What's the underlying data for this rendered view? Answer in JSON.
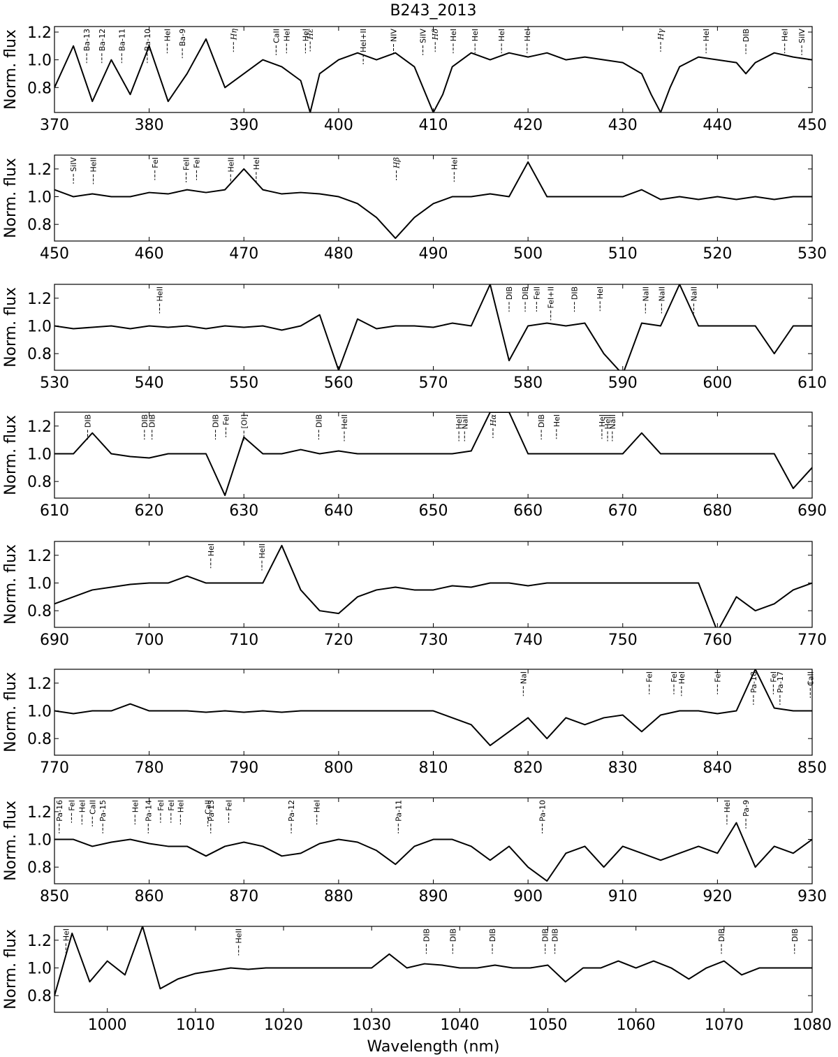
{
  "chart_data": [
    {
      "type": "line",
      "title": "B243_2013",
      "ylabel": "Norm. flux",
      "color": "#000000",
      "xlim": [
        370,
        450
      ],
      "xticks": [
        370,
        380,
        390,
        400,
        410,
        420,
        430,
        440,
        450
      ],
      "ylim": [
        0.62,
        1.24
      ],
      "yticks": [
        0.8,
        {
          "value": 1,
          "label": "1.0"
        },
        1.2
      ],
      "x": [
        370,
        372,
        374,
        376,
        378,
        380,
        382,
        384,
        386,
        388,
        390,
        392,
        394,
        396,
        397,
        398,
        400,
        402,
        404,
        406,
        408,
        410,
        411,
        412,
        414,
        416,
        418,
        420,
        422,
        424,
        426,
        428,
        430,
        432,
        433,
        434,
        435,
        436,
        438,
        440,
        442,
        443,
        444,
        446,
        448,
        450
      ],
      "values": [
        0.8,
        1.1,
        0.7,
        1.0,
        0.75,
        1.1,
        0.7,
        0.9,
        1.15,
        0.8,
        0.9,
        1.0,
        0.95,
        0.85,
        0.62,
        0.9,
        1.0,
        1.05,
        1.0,
        1.05,
        0.95,
        0.62,
        0.75,
        0.95,
        1.05,
        1.0,
        1.05,
        1.02,
        1.05,
        1.0,
        1.02,
        1.0,
        0.98,
        0.9,
        0.75,
        0.62,
        0.8,
        0.95,
        1.02,
        1.0,
        0.98,
        0.9,
        0.98,
        1.05,
        1.02,
        1.0
      ],
      "annotations": [
        {
          "x": 373.4,
          "text": "Ba-13"
        },
        {
          "x": 375.0,
          "text": "Ba-12"
        },
        {
          "x": 377.1,
          "text": "Ba-11"
        },
        {
          "x": 379.8,
          "text": "Ba-10"
        },
        {
          "x": 381.9,
          "text": "HeI"
        },
        {
          "x": 383.5,
          "text": "Ba-9"
        },
        {
          "x": 388.9,
          "text": "Hη"
        },
        {
          "x": 393.4,
          "text": "CaII"
        },
        {
          "x": 394.5,
          "text": "HeI"
        },
        {
          "x": 396.5,
          "text": "HeI"
        },
        {
          "x": 397.0,
          "text": "Hε"
        },
        {
          "x": 402.6,
          "text": "HeI+II"
        },
        {
          "x": 405.8,
          "text": "NIV"
        },
        {
          "x": 408.9,
          "text": "SiIV"
        },
        {
          "x": 410.2,
          "text": "Hδ"
        },
        {
          "x": 412.1,
          "text": "HeI"
        },
        {
          "x": 414.4,
          "text": "HeI"
        },
        {
          "x": 417.2,
          "text": "HeI"
        },
        {
          "x": 419.9,
          "text": "HeI"
        },
        {
          "x": 434.0,
          "text": "Hγ"
        },
        {
          "x": 438.8,
          "text": "HeI"
        },
        {
          "x": 443.0,
          "text": "DIB"
        },
        {
          "x": 447.1,
          "text": "HeI"
        },
        {
          "x": 448.9,
          "text": "SiIV"
        }
      ]
    },
    {
      "type": "line",
      "ylabel": "Norm. flux",
      "color": "#000000",
      "xlim": [
        450,
        530
      ],
      "xticks": [
        450,
        460,
        470,
        480,
        490,
        500,
        510,
        520,
        530
      ],
      "ylim": [
        0.68,
        1.3
      ],
      "yticks": [
        0.8,
        {
          "value": 1,
          "label": "1.0"
        },
        1.2
      ],
      "x": [
        450,
        452,
        454,
        456,
        458,
        460,
        462,
        464,
        466,
        468,
        470,
        472,
        474,
        476,
        478,
        480,
        482,
        484,
        486,
        488,
        490,
        492,
        494,
        496,
        498,
        500,
        502,
        504,
        506,
        508,
        510,
        512,
        514,
        516,
        518,
        520,
        522,
        524,
        526,
        528,
        530
      ],
      "values": [
        1.05,
        1.0,
        1.02,
        1.0,
        1.0,
        1.03,
        1.02,
        1.05,
        1.03,
        1.05,
        1.2,
        1.05,
        1.02,
        1.03,
        1.02,
        1.0,
        0.95,
        0.85,
        0.7,
        0.85,
        0.95,
        1.0,
        1.0,
        1.02,
        1.0,
        1.25,
        1.0,
        1.0,
        1.0,
        1.0,
        1.0,
        1.05,
        0.98,
        1.0,
        0.98,
        1.0,
        0.98,
        1.0,
        0.98,
        1.0,
        1.0
      ],
      "annotations": [
        {
          "x": 452.0,
          "text": "SiIV"
        },
        {
          "x": 454.1,
          "text": "HeII"
        },
        {
          "x": 460.6,
          "text": "FeI"
        },
        {
          "x": 463.9,
          "text": "FeII"
        },
        {
          "x": 465.0,
          "text": "FeI"
        },
        {
          "x": 468.6,
          "text": "HeII"
        },
        {
          "x": 471.3,
          "text": "HeI"
        },
        {
          "x": 486.1,
          "text": "Hβ"
        },
        {
          "x": 492.2,
          "text": "HeI"
        }
      ]
    },
    {
      "type": "line",
      "ylabel": "Norm. flux",
      "color": "#000000",
      "xlim": [
        530,
        610
      ],
      "xticks": [
        530,
        540,
        550,
        560,
        570,
        580,
        590,
        600,
        610
      ],
      "ylim": [
        0.68,
        1.3
      ],
      "yticks": [
        0.8,
        {
          "value": 1,
          "label": "1.0"
        },
        1.2
      ],
      "x": [
        530,
        532,
        534,
        536,
        538,
        540,
        542,
        544,
        546,
        548,
        550,
        552,
        554,
        556,
        558,
        560,
        562,
        564,
        566,
        568,
        570,
        572,
        574,
        576,
        578,
        580,
        582,
        584,
        586,
        588,
        590,
        592,
        594,
        596,
        598,
        600,
        602,
        604,
        606,
        608,
        610
      ],
      "values": [
        1.0,
        0.98,
        0.99,
        1.0,
        0.98,
        1.0,
        0.99,
        1.0,
        0.98,
        1.0,
        0.99,
        1.0,
        0.97,
        1.0,
        1.08,
        0.68,
        1.05,
        0.98,
        1.0,
        1.0,
        0.99,
        1.02,
        1.0,
        1.3,
        0.75,
        1.0,
        1.02,
        1.0,
        1.02,
        0.8,
        0.65,
        1.02,
        1.0,
        1.3,
        1.0,
        1.0,
        1.0,
        1.0,
        0.8,
        1.0,
        1.0
      ],
      "annotations": [
        {
          "x": 541.1,
          "text": "HeII"
        },
        {
          "x": 578.0,
          "text": "DIB"
        },
        {
          "x": 579.7,
          "text": "DIB"
        },
        {
          "x": 580.9,
          "text": "FeII"
        },
        {
          "x": 582.4,
          "text": "FeI+II"
        },
        {
          "x": 584.9,
          "text": "DIB"
        },
        {
          "x": 587.6,
          "text": "HeI"
        },
        {
          "x": 592.4,
          "text": "NaII"
        },
        {
          "x": 594.1,
          "text": "NaII"
        },
        {
          "x": 597.5,
          "text": "NaII"
        }
      ]
    },
    {
      "type": "line",
      "ylabel": "Norm. flux",
      "color": "#000000",
      "xlim": [
        610,
        690
      ],
      "xticks": [
        610,
        620,
        630,
        640,
        650,
        660,
        670,
        680,
        690
      ],
      "ylim": [
        0.68,
        1.3
      ],
      "yticks": [
        0.8,
        {
          "value": 1,
          "label": "1.0"
        },
        1.2
      ],
      "x": [
        610,
        612,
        614,
        616,
        618,
        620,
        622,
        624,
        626,
        628,
        630,
        632,
        634,
        636,
        638,
        640,
        642,
        644,
        646,
        648,
        650,
        652,
        654,
        656,
        658,
        660,
        662,
        664,
        666,
        668,
        670,
        672,
        674,
        676,
        678,
        680,
        682,
        684,
        686,
        688,
        690
      ],
      "values": [
        1.0,
        1.0,
        1.15,
        1.0,
        0.98,
        0.97,
        1.0,
        1.0,
        1.0,
        0.7,
        1.12,
        1.0,
        1.0,
        1.03,
        1.0,
        1.02,
        1.0,
        1.0,
        1.0,
        1.0,
        1.0,
        1.0,
        1.02,
        1.3,
        1.3,
        1.0,
        1.0,
        1.0,
        1.0,
        1.0,
        1.0,
        1.15,
        1.0,
        1.0,
        1.0,
        1.0,
        1.0,
        1.0,
        1.0,
        0.75,
        0.9
      ],
      "annotations": [
        {
          "x": 613.5,
          "text": "DIB"
        },
        {
          "x": 619.5,
          "text": "DIB"
        },
        {
          "x": 620.3,
          "text": "DIB"
        },
        {
          "x": 627.0,
          "text": "DIB"
        },
        {
          "x": 628.1,
          "text": "FeI"
        },
        {
          "x": 630.0,
          "text": "[OI]"
        },
        {
          "x": 637.9,
          "text": "DIB"
        },
        {
          "x": 640.6,
          "text": "HeII"
        },
        {
          "x": 652.7,
          "text": "HeII"
        },
        {
          "x": 653.3,
          "text": "NaII"
        },
        {
          "x": 656.3,
          "text": "Hα"
        },
        {
          "x": 661.4,
          "text": "DIB"
        },
        {
          "x": 663.0,
          "text": "HeI"
        },
        {
          "x": 667.8,
          "text": "HeI"
        },
        {
          "x": 668.4,
          "text": "HeII"
        },
        {
          "x": 668.9,
          "text": "NaII"
        }
      ]
    },
    {
      "type": "line",
      "ylabel": "Norm. flux",
      "color": "#000000",
      "xlim": [
        690,
        770
      ],
      "xticks": [
        690,
        700,
        710,
        720,
        730,
        740,
        750,
        760,
        770
      ],
      "ylim": [
        0.68,
        1.3
      ],
      "yticks": [
        0.8,
        {
          "value": 1,
          "label": "1.0"
        },
        1.2
      ],
      "x": [
        690,
        692,
        694,
        696,
        698,
        700,
        702,
        704,
        706,
        708,
        710,
        712,
        714,
        716,
        718,
        720,
        722,
        724,
        726,
        728,
        730,
        732,
        734,
        736,
        738,
        740,
        742,
        744,
        746,
        748,
        750,
        752,
        754,
        756,
        758,
        760,
        762,
        764,
        766,
        768,
        770
      ],
      "values": [
        0.85,
        0.9,
        0.95,
        0.97,
        0.99,
        1.0,
        1.0,
        1.05,
        1.0,
        1.0,
        1.0,
        1.0,
        1.27,
        0.95,
        0.8,
        0.78,
        0.9,
        0.95,
        0.97,
        0.95,
        0.95,
        0.98,
        0.97,
        1.0,
        1.0,
        0.98,
        1.0,
        1.0,
        1.0,
        1.0,
        1.0,
        1.0,
        1.0,
        1.0,
        1.0,
        0.65,
        0.9,
        0.8,
        0.85,
        0.95,
        1.0
      ],
      "annotations": [
        {
          "x": 706.5,
          "text": "HeI"
        },
        {
          "x": 711.9,
          "text": "HeII"
        }
      ]
    },
    {
      "type": "line",
      "ylabel": "Norm. flux",
      "color": "#000000",
      "xlim": [
        770,
        850
      ],
      "xticks": [
        770,
        780,
        790,
        800,
        810,
        820,
        830,
        840,
        850
      ],
      "ylim": [
        0.68,
        1.3
      ],
      "yticks": [
        0.8,
        {
          "value": 1,
          "label": "1.0"
        },
        1.2
      ],
      "x": [
        770,
        772,
        774,
        776,
        778,
        780,
        782,
        784,
        786,
        788,
        790,
        792,
        794,
        796,
        798,
        800,
        802,
        804,
        806,
        808,
        810,
        812,
        814,
        816,
        818,
        820,
        822,
        824,
        826,
        828,
        830,
        832,
        834,
        836,
        838,
        840,
        842,
        844,
        846,
        848,
        850
      ],
      "values": [
        1.0,
        0.98,
        1.0,
        1.0,
        1.05,
        1.0,
        1.0,
        1.0,
        0.99,
        1.0,
        0.99,
        1.0,
        0.99,
        1.0,
        1.0,
        1.0,
        1.0,
        1.0,
        1.0,
        1.0,
        1.0,
        0.95,
        0.9,
        0.75,
        0.85,
        0.95,
        0.8,
        0.95,
        0.9,
        0.95,
        0.97,
        0.85,
        0.97,
        1.0,
        1.0,
        0.98,
        1.0,
        1.3,
        1.02,
        1.0,
        1.0
      ],
      "annotations": [
        {
          "x": 819.5,
          "text": "NaI"
        },
        {
          "x": 832.8,
          "text": "FeI"
        },
        {
          "x": 835.4,
          "text": "FeI"
        },
        {
          "x": 836.2,
          "text": "HeI"
        },
        {
          "x": 840.0,
          "text": "FeI"
        },
        {
          "x": 843.8,
          "text": "Pa-18"
        },
        {
          "x": 845.9,
          "text": "FeI"
        },
        {
          "x": 846.6,
          "text": "Pa-17"
        },
        {
          "x": 849.8,
          "text": "CaII"
        }
      ]
    },
    {
      "type": "line",
      "ylabel": "Norm. flux",
      "color": "#000000",
      "xlim": [
        850,
        930
      ],
      "xticks": [
        850,
        860,
        870,
        880,
        890,
        900,
        910,
        920,
        930
      ],
      "ylim": [
        0.68,
        1.3
      ],
      "yticks": [
        0.8,
        {
          "value": 1,
          "label": "1.0"
        },
        1.2
      ],
      "x": [
        850,
        852,
        854,
        856,
        858,
        860,
        862,
        864,
        866,
        868,
        870,
        872,
        874,
        876,
        878,
        880,
        882,
        884,
        886,
        888,
        890,
        892,
        894,
        896,
        898,
        900,
        902,
        904,
        906,
        908,
        910,
        912,
        914,
        916,
        918,
        920,
        922,
        924,
        926,
        928,
        930
      ],
      "values": [
        1.0,
        1.0,
        0.95,
        0.98,
        1.0,
        0.97,
        0.95,
        0.95,
        0.88,
        0.95,
        0.98,
        0.95,
        0.88,
        0.9,
        0.97,
        1.0,
        0.98,
        0.92,
        0.82,
        0.95,
        1.0,
        1.0,
        0.95,
        0.85,
        0.95,
        0.8,
        0.7,
        0.9,
        0.95,
        0.8,
        0.95,
        0.9,
        0.85,
        0.9,
        0.95,
        0.9,
        1.12,
        0.8,
        0.95,
        0.9,
        1.0
      ],
      "annotations": [
        {
          "x": 850.5,
          "text": "Pa-16"
        },
        {
          "x": 851.8,
          "text": "FeI"
        },
        {
          "x": 852.9,
          "text": "HeI"
        },
        {
          "x": 854.0,
          "text": "CaII"
        },
        {
          "x": 855.1,
          "text": "Pa-15"
        },
        {
          "x": 858.5,
          "text": "HeI"
        },
        {
          "x": 859.9,
          "text": "Pa-14"
        },
        {
          "x": 861.2,
          "text": "FeI"
        },
        {
          "x": 862.3,
          "text": "FeI"
        },
        {
          "x": 863.3,
          "text": "HeI"
        },
        {
          "x": 866.2,
          "text": "CaII"
        },
        {
          "x": 866.5,
          "text": "Pa-13"
        },
        {
          "x": 868.4,
          "text": "FeI"
        },
        {
          "x": 875.0,
          "text": "Pa-12"
        },
        {
          "x": 877.7,
          "text": "HeI"
        },
        {
          "x": 886.3,
          "text": "Pa-11"
        },
        {
          "x": 901.5,
          "text": "Pa-10"
        },
        {
          "x": 921.0,
          "text": "HeI"
        },
        {
          "x": 923.0,
          "text": "Pa-9"
        }
      ]
    },
    {
      "type": "line",
      "ylabel": "Norm. flux",
      "xlabel": "Wavelength (nm)",
      "color": "#000000",
      "xlim": [
        994,
        1080
      ],
      "xticks": [
        1000,
        1010,
        1020,
        1030,
        1040,
        1050,
        1060,
        1070,
        1080
      ],
      "ylim": [
        0.68,
        1.3
      ],
      "yticks": [
        0.8,
        {
          "value": 1,
          "label": "1.0"
        },
        1.2
      ],
      "x": [
        994,
        996,
        998,
        1000,
        1002,
        1004,
        1006,
        1008,
        1010,
        1012,
        1014,
        1016,
        1018,
        1020,
        1022,
        1024,
        1026,
        1028,
        1030,
        1032,
        1034,
        1036,
        1038,
        1040,
        1042,
        1044,
        1046,
        1048,
        1050,
        1052,
        1054,
        1056,
        1058,
        1060,
        1062,
        1064,
        1066,
        1068,
        1070,
        1072,
        1074,
        1076,
        1078,
        1080
      ],
      "values": [
        0.8,
        1.25,
        0.9,
        1.05,
        0.95,
        1.3,
        0.85,
        0.92,
        0.96,
        0.98,
        1.0,
        0.99,
        1.0,
        1.0,
        1.0,
        1.0,
        1.0,
        1.0,
        1.0,
        1.1,
        1.0,
        1.03,
        1.02,
        1.0,
        1.0,
        1.02,
        1.0,
        1.0,
        1.02,
        0.9,
        1.0,
        1.0,
        1.05,
        1.0,
        1.05,
        1.0,
        0.92,
        1.0,
        1.05,
        0.95,
        1.0,
        1.0,
        1.0,
        1.0
      ],
      "annotations": [
        {
          "x": 995.3,
          "text": "HeI"
        },
        {
          "x": 1014.9,
          "text": "HeII"
        },
        {
          "x": 1036.2,
          "text": "DIB"
        },
        {
          "x": 1039.2,
          "text": "DIB"
        },
        {
          "x": 1043.7,
          "text": "DIB"
        },
        {
          "x": 1049.7,
          "text": "DIB"
        },
        {
          "x": 1050.8,
          "text": "DIB"
        },
        {
          "x": 1069.7,
          "text": "DIB"
        },
        {
          "x": 1078.0,
          "text": "DIB"
        }
      ]
    }
  ]
}
